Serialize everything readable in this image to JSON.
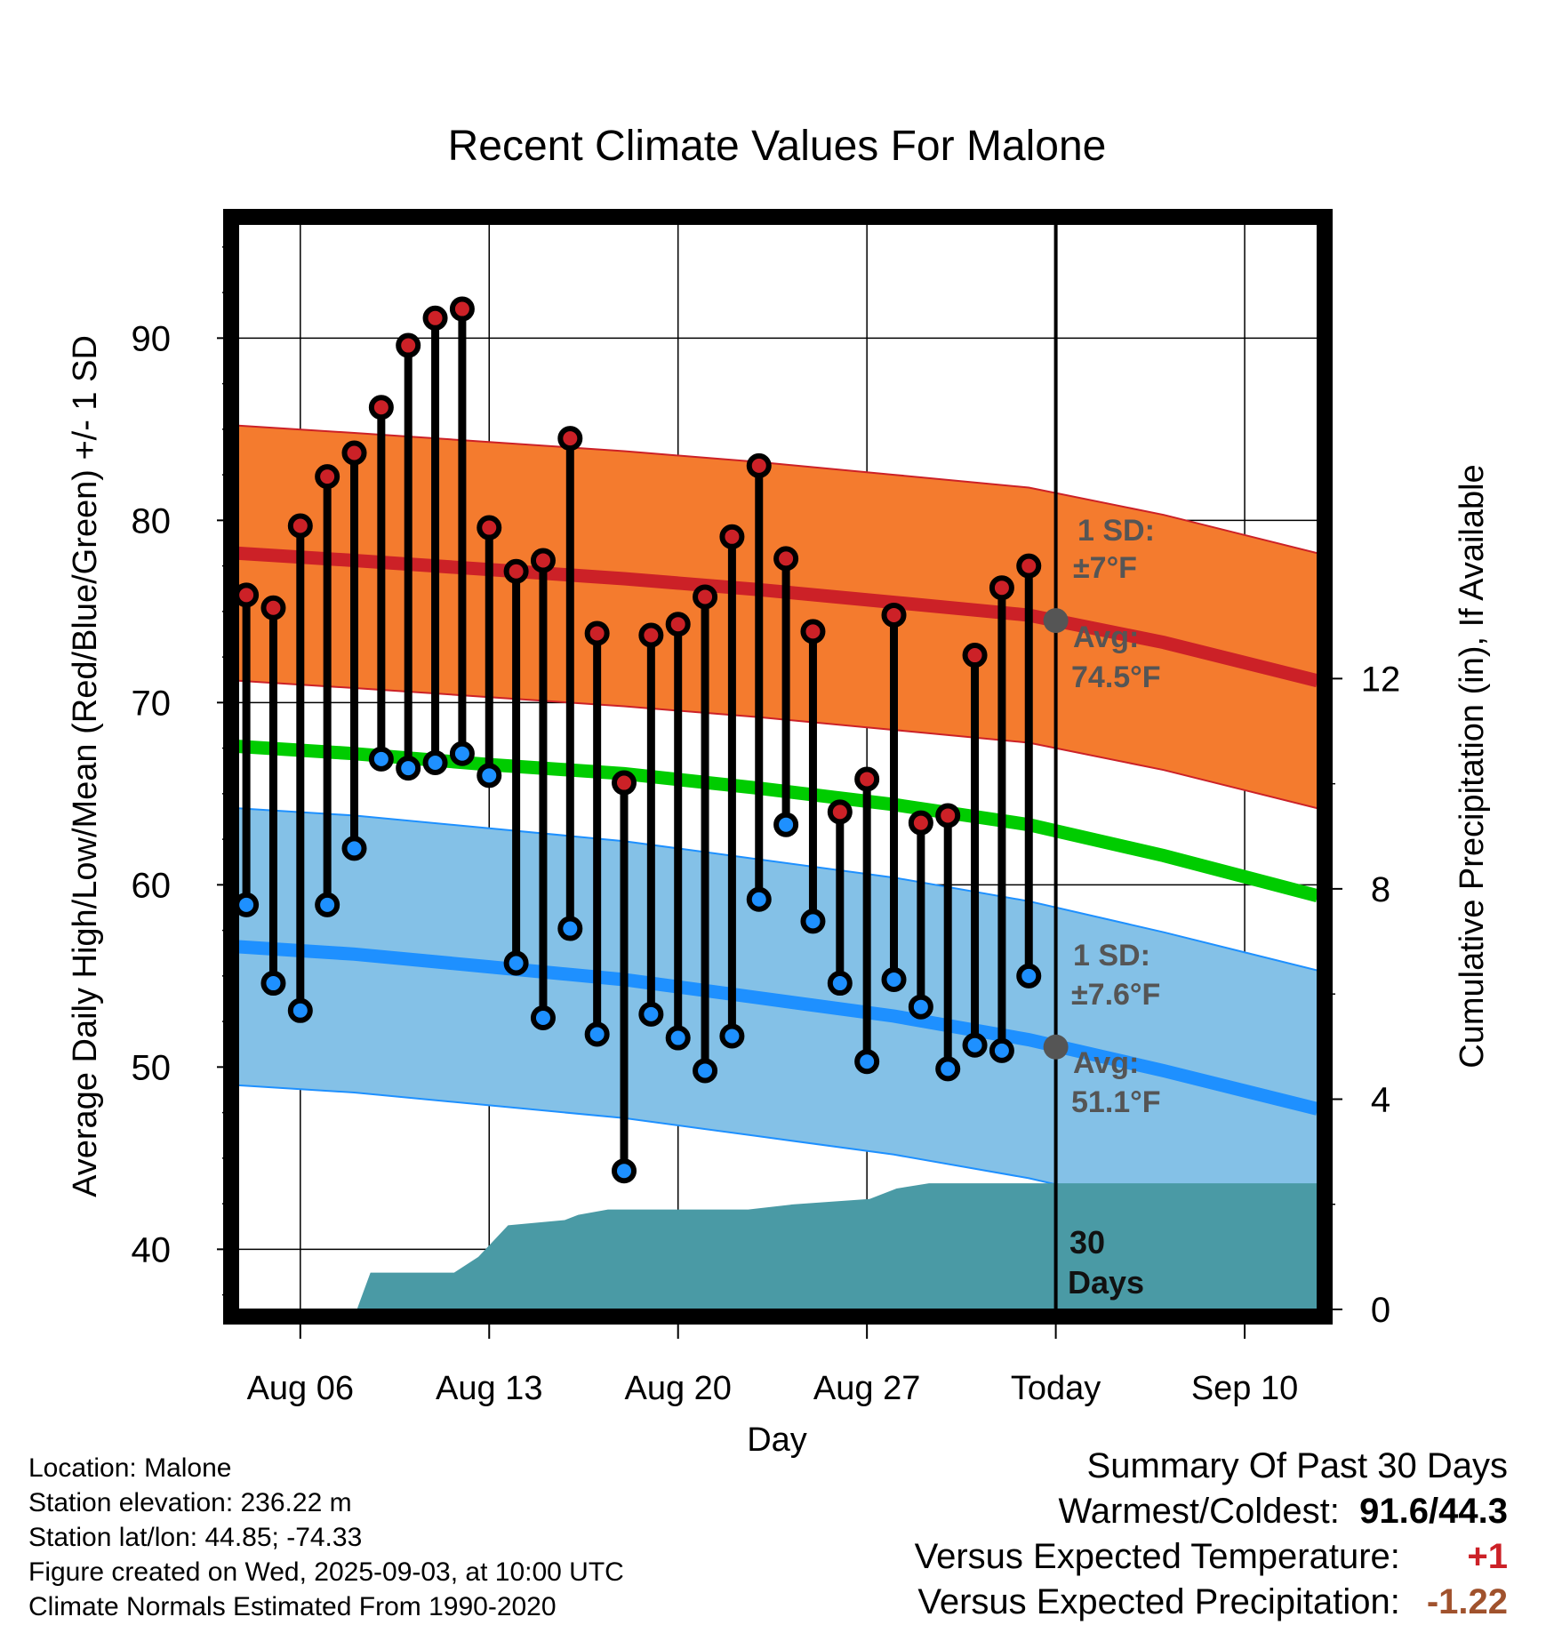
{
  "chart_data": {
    "type": "line",
    "title": "Recent Climate Values For Malone",
    "xlabel": "Day",
    "ylabel": "Average Daily High/Low/Mean (Red/Blue/Green) +/- 1 SD",
    "y2label": "Cumulative Precipitation (in), If Available",
    "ylim": [
      36.7,
      96.7
    ],
    "y2lim": [
      0,
      20.8
    ],
    "y_ticks": [
      "40",
      "50",
      "60",
      "70",
      "80",
      "90"
    ],
    "y2_ticks": [
      "0",
      "4",
      "8",
      "12"
    ],
    "x_ticks": [
      {
        "day": 6,
        "label": "Aug 06"
      },
      {
        "day": 13,
        "label": "Aug 13"
      },
      {
        "day": 20,
        "label": "Aug 20"
      },
      {
        "day": 27,
        "label": "Aug 27"
      },
      {
        "day": 34,
        "label": "Today"
      },
      {
        "day": 41,
        "label": "Sep 10"
      }
    ],
    "x_range_day": [
      3.7,
      43.7
    ],
    "today_day": 34,
    "grid": true,
    "normals": {
      "x_day": [
        3.7,
        8,
        13,
        18,
        23,
        28,
        33,
        38,
        43.7
      ],
      "high_mean": [
        78.2,
        77.8,
        77.3,
        76.8,
        76.2,
        75.5,
        74.8,
        73.3,
        71.2
      ],
      "high_sd": 7,
      "mean": [
        67.6,
        67.2,
        66.6,
        66.1,
        65.3,
        64.4,
        63.3,
        61.6,
        59.4
      ],
      "low_mean": [
        56.6,
        56.2,
        55.5,
        54.8,
        53.8,
        52.8,
        51.5,
        49.8,
        47.7
      ],
      "low_sd": 7.6
    },
    "series": [
      {
        "name": "High",
        "color": "#cc2127",
        "x": [
          4,
          5,
          6,
          7,
          8,
          9,
          10,
          11,
          12,
          13,
          14,
          15,
          16,
          17,
          18,
          19,
          20,
          21,
          22,
          23,
          24,
          25,
          26,
          27,
          28,
          29,
          30,
          31,
          32,
          33
        ],
        "values": [
          75.9,
          75.2,
          79.7,
          82.4,
          83.7,
          86.2,
          89.6,
          91.1,
          91.6,
          79.6,
          77.2,
          77.8,
          84.5,
          73.8,
          65.6,
          73.7,
          74.3,
          75.8,
          79.1,
          83.0,
          77.9,
          73.9,
          64.0,
          65.8,
          74.8,
          63.4,
          63.8,
          72.6,
          76.3,
          77.5
        ]
      },
      {
        "name": "Low",
        "color": "#1e90ff",
        "x": [
          4,
          5,
          6,
          7,
          8,
          9,
          10,
          11,
          12,
          13,
          14,
          15,
          16,
          17,
          18,
          19,
          20,
          21,
          22,
          23,
          24,
          25,
          26,
          27,
          28,
          29,
          30,
          31,
          32,
          33
        ],
        "values": [
          58.9,
          54.6,
          53.1,
          58.9,
          62.0,
          66.9,
          66.4,
          66.7,
          67.2,
          66.0,
          55.7,
          52.7,
          57.6,
          51.8,
          44.3,
          52.9,
          51.6,
          49.8,
          51.7,
          59.2,
          63.3,
          58.0,
          54.6,
          50.3,
          54.8,
          53.3,
          49.9,
          51.2,
          50.9,
          55.0
        ]
      }
    ],
    "precipitation": {
      "name": "Cumulative Precipitation",
      "color": "#4a9aa5",
      "x": [
        3.7,
        8.1,
        8.6,
        11.7,
        12.6,
        13.7,
        15.8,
        16.3,
        17.4,
        22.6,
        24.3,
        27.1,
        28.1,
        29.3,
        33.7,
        43.7
      ],
      "values": [
        0,
        0,
        0.7,
        0.7,
        1.0,
        1.6,
        1.7,
        1.8,
        1.9,
        1.9,
        2.0,
        2.1,
        2.3,
        2.4,
        2.4,
        2.4
      ]
    },
    "annotations": {
      "high_sd": {
        "line1": "1 SD:",
        "line2": "±7°F"
      },
      "high_avg": {
        "line1": "Avg:",
        "line2": "74.5°F",
        "value": 74.5
      },
      "low_sd": {
        "line1": "1 SD:",
        "line2": "±7.6°F"
      },
      "low_avg": {
        "line1": "Avg:",
        "line2": "51.1°F",
        "value": 51.1
      },
      "days": {
        "line1": "30",
        "line2": "Days"
      }
    },
    "colors": {
      "high_band": "#f47b2e",
      "high_line": "#cc2127",
      "low_band": "#84c1e7",
      "low_line": "#1e90ff",
      "mean_line": "#00cc00",
      "precip": "#4a9aa5",
      "annotation_text": "#555555"
    }
  },
  "footer": {
    "location": "Location: Malone",
    "elevation": "Station elevation: 236.22 m",
    "latlon": "Station lat/lon: 44.85; -74.33",
    "created": "Figure created on Wed, 2025-09-03, at 10:00 UTC",
    "normals": "Climate Normals Estimated From 1990-2020"
  },
  "summary": {
    "title": "Summary Of Past 30 Days",
    "warmest_label": "Warmest/Coldest:",
    "warmest_value": "91.6/44.3",
    "temp_label": "Versus Expected Temperature:",
    "temp_value": "+1",
    "temp_color": "#cc2127",
    "precip_label": "Versus Expected Precipitation:",
    "precip_value": "-1.22",
    "precip_color": "#a0522d"
  }
}
